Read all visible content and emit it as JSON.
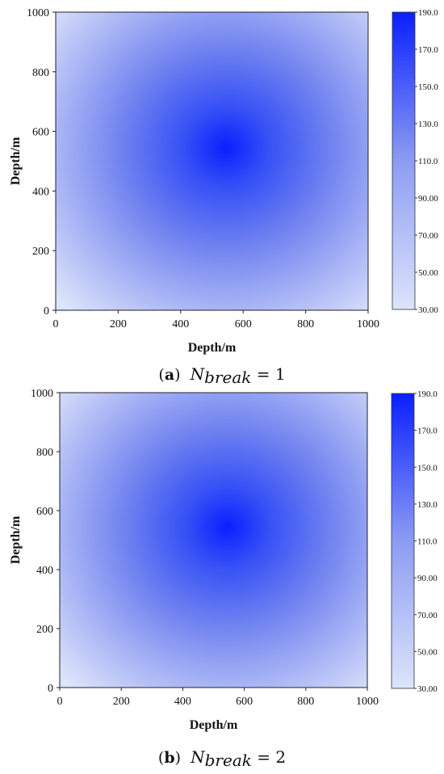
{
  "chart_data": [
    {
      "type": "heatmap",
      "caption": {
        "letter": "a",
        "symbol": "N",
        "subscript": "break",
        "relation": "= 1"
      },
      "xlabel": "Depth/m",
      "ylabel": "Depth/m",
      "xlim": [
        0,
        1000
      ],
      "ylim": [
        0,
        1000
      ],
      "xticks": [
        "0",
        "200",
        "400",
        "600",
        "800",
        "1000"
      ],
      "yticks": [
        "0",
        "200",
        "400",
        "600",
        "800",
        "1000"
      ],
      "peak": {
        "x": 545,
        "y": 545,
        "value": 190.0
      },
      "corner_value": 30.0,
      "colorbar": {
        "min": 30.0,
        "max": 190.0,
        "ticks": [
          "30.00",
          "50.00",
          "70.00",
          "90.00",
          "110.0",
          "130.0",
          "150.0",
          "170.0",
          "190.0"
        ],
        "colors": {
          "low": "#dde4fb",
          "high": "#0a1fff"
        }
      }
    },
    {
      "type": "heatmap",
      "caption": {
        "letter": "b",
        "symbol": "N",
        "subscript": "break",
        "relation": "= 2"
      },
      "xlabel": "Depth/m",
      "ylabel": "Depth/m",
      "xlim": [
        0,
        1000
      ],
      "ylim": [
        0,
        1000
      ],
      "xticks": [
        "0",
        "200",
        "400",
        "600",
        "800",
        "1000"
      ],
      "yticks": [
        "0",
        "200",
        "400",
        "600",
        "800",
        "1000"
      ],
      "peak": {
        "x": 545,
        "y": 545,
        "value": 190.0
      },
      "corner_value": 30.0,
      "colorbar": {
        "min": 30.0,
        "max": 190.0,
        "ticks": [
          "30.00",
          "50.00",
          "70.00",
          "90.00",
          "110.0",
          "130.0",
          "150.0",
          "170.0",
          "190.0"
        ],
        "colors": {
          "low": "#dde4fb",
          "high": "#0a1fff"
        }
      }
    }
  ]
}
